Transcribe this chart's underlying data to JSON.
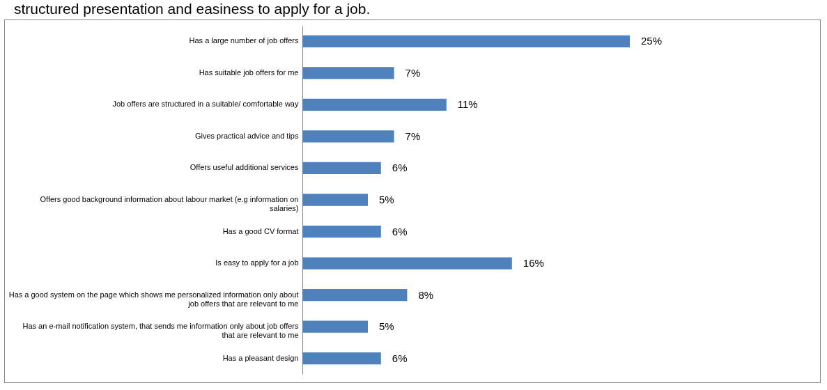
{
  "chart_data": {
    "type": "bar",
    "orientation": "horizontal",
    "title": "structured presentation and easiness to apply for a job.",
    "categories": [
      "Has a large number of job offers",
      "Has suitable job offers for me",
      "Job offers are structured in a suitable/ comfortable way",
      "Gives practical advice and tips",
      "Offers useful additional services",
      "Offers good background information about labour market (e.g information on salaries)",
      "Has a good CV format",
      "Is easy to apply for a job",
      "Has a good system on the page which shows me personalized information only about job offers that are relevant to me",
      "Has an e-mail notification system, that sends me information only about job offers that are relevant to me",
      "Has a pleasant design"
    ],
    "values": [
      25,
      7,
      11,
      7,
      6,
      5,
      6,
      16,
      8,
      5,
      6
    ],
    "value_labels": [
      "25%",
      "7%",
      "11%",
      "7%",
      "6%",
      "5%",
      "6%",
      "16%",
      "8%",
      "5%",
      "6%"
    ],
    "color": "#4f81bd"
  }
}
